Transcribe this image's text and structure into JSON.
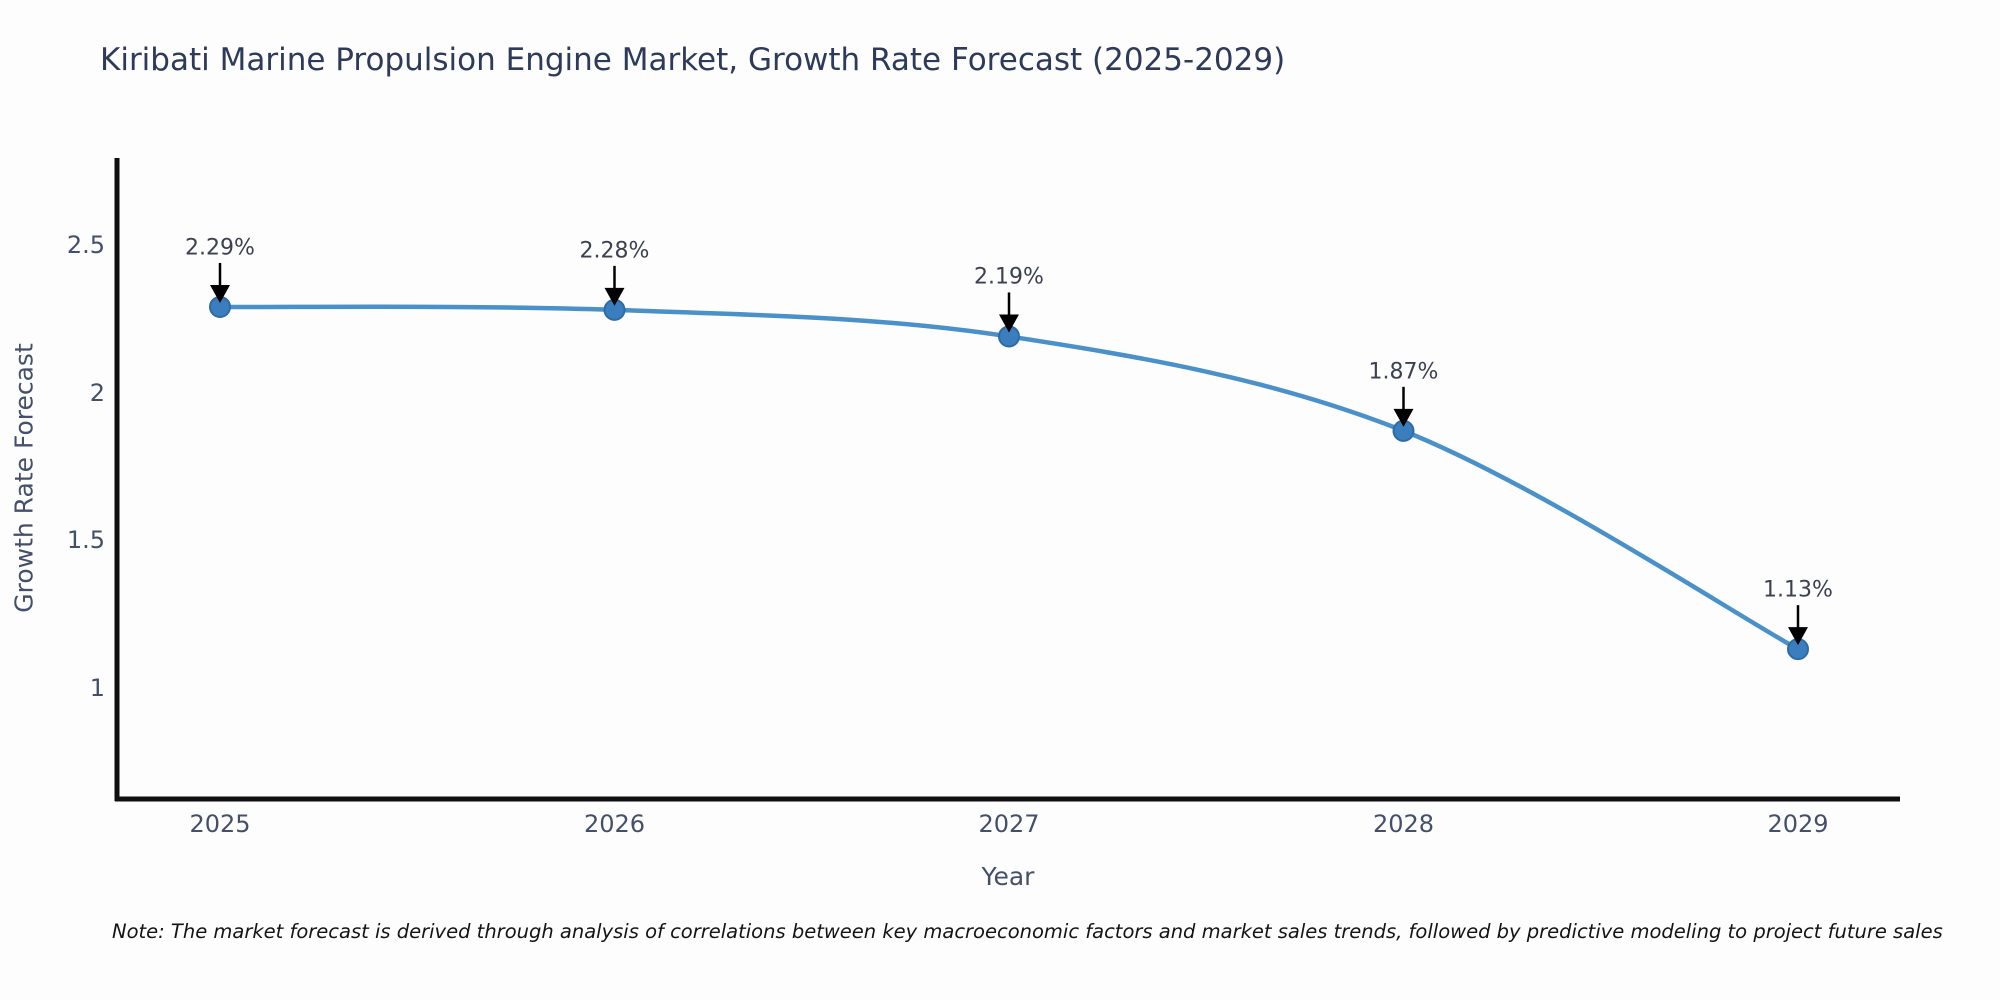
{
  "title": "Kiribati Marine Propulsion Engine Market, Growth Rate Forecast (2025-2029)",
  "note": "Note: The market forecast is derived through analysis of correlations between key macroeconomic factors and market sales trends, followed by predictive modeling to project future sales",
  "chart_data": {
    "type": "line",
    "title": "Kiribati Marine Propulsion Engine Market, Growth Rate Forecast (2025-2029)",
    "x": [
      2025,
      2026,
      2027,
      2028,
      2029
    ],
    "series": [
      {
        "name": "Growth Rate Forecast",
        "values": [
          2.29,
          2.28,
          2.19,
          1.87,
          1.13
        ]
      }
    ],
    "point_labels": [
      "2.29%",
      "2.28%",
      "2.19%",
      "1.87%",
      "1.13%"
    ],
    "xlabel": "Year",
    "ylabel": "Growth Rate Forecast",
    "yticks": [
      2.5,
      2,
      1.5,
      1
    ],
    "xticks": [
      "2025",
      "2026",
      "2027",
      "2028",
      "2029"
    ],
    "ylim": [
      0.62,
      2.78
    ],
    "grid": false,
    "legend": false,
    "line_color": "#4a90c9",
    "marker_color": "#3a7ebd",
    "marker_edge_color": "#2e6ba6",
    "axis_color": "#0f0f0f",
    "annotation_arrow_color": "#000000",
    "curve": "smooth"
  }
}
